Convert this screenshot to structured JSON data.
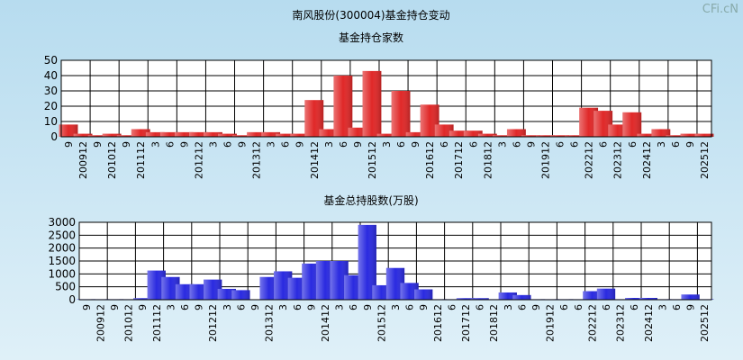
{
  "title": "南风股份(300004)基金持仓变动",
  "watermark": "CFi.cN",
  "chart_data": [
    {
      "type": "bar",
      "title": "基金持仓家数",
      "color": "#e02828",
      "categories": [
        "9",
        "200912",
        "9",
        "201012",
        "9",
        "201112",
        "3",
        "6",
        "9",
        "201212",
        "3",
        "6",
        "9",
        "201312",
        "3",
        "6",
        "9",
        "201412",
        "3",
        "6",
        "9",
        "201512",
        "3",
        "6",
        "9",
        "201612",
        "6",
        "201712",
        "6",
        "201812",
        "3",
        "6",
        "9",
        "201912",
        "6",
        "6",
        "202212",
        "6",
        "202312",
        "6",
        "202412",
        "3",
        "6",
        "9",
        "202512"
      ],
      "values": [
        8,
        2,
        1,
        2,
        1,
        5,
        3,
        3,
        3,
        3,
        3,
        2,
        1,
        3,
        3,
        2,
        2,
        24,
        5,
        40,
        6,
        43,
        2,
        30,
        3,
        21,
        8,
        4,
        4,
        2,
        1,
        5,
        1,
        1,
        1,
        1,
        19,
        17,
        8,
        16,
        2,
        5,
        1,
        2,
        2
      ],
      "ylim": [
        0,
        50
      ],
      "yticks": [
        0,
        10,
        20,
        30,
        40,
        50
      ],
      "grid": true
    },
    {
      "type": "bar",
      "title": "基金总持股数(万股)",
      "color": "#2a2ae0",
      "categories": [
        "9",
        "200912",
        "9",
        "201012",
        "9",
        "201112",
        "3",
        "6",
        "9",
        "201212",
        "3",
        "6",
        "9",
        "201312",
        "3",
        "6",
        "9",
        "201412",
        "3",
        "6",
        "9",
        "201512",
        "3",
        "6",
        "9",
        "201612",
        "6",
        "201712",
        "6",
        "201812",
        "3",
        "6",
        "9",
        "201912",
        "6",
        "6",
        "202212",
        "6",
        "202312",
        "6",
        "202412",
        "3",
        "6",
        "9",
        "202512"
      ],
      "values": [
        20,
        20,
        20,
        20,
        60,
        1130,
        880,
        600,
        600,
        780,
        420,
        370,
        10,
        880,
        1100,
        850,
        1400,
        1500,
        1500,
        950,
        2900,
        560,
        1230,
        650,
        400,
        20,
        20,
        60,
        60,
        20,
        280,
        180,
        20,
        20,
        20,
        20,
        330,
        430,
        20,
        70,
        70,
        20,
        20,
        200,
        20
      ],
      "ylim": [
        0,
        3000
      ],
      "yticks": [
        0,
        500,
        1000,
        1500,
        2000,
        2500,
        3000
      ],
      "grid": true
    }
  ]
}
